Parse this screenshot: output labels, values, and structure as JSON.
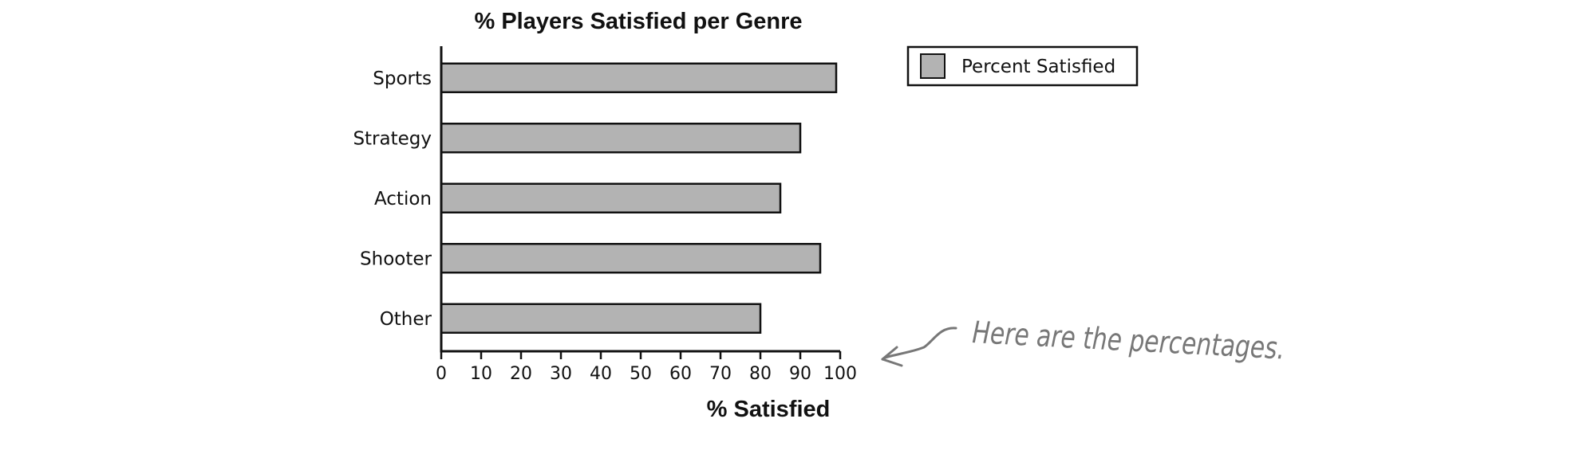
{
  "chart_data": {
    "type": "bar",
    "orientation": "horizontal",
    "title": "% Players Satisfied per Genre",
    "xlabel": "% Satisfied",
    "ylabel": "",
    "categories": [
      "Sports",
      "Strategy",
      "Action",
      "Shooter",
      "Other"
    ],
    "series": [
      {
        "name": "Percent Satisfied",
        "values": [
          99,
          90,
          85,
          95,
          80
        ],
        "color": "#b3b3b3"
      }
    ],
    "xlim": [
      0,
      100
    ],
    "xticks": [
      "0",
      "10",
      "20",
      "30",
      "40",
      "50",
      "60",
      "70",
      "80",
      "90",
      "100"
    ],
    "grid": false,
    "legend_position": "top-right",
    "annotation": "Here are the percentages."
  }
}
